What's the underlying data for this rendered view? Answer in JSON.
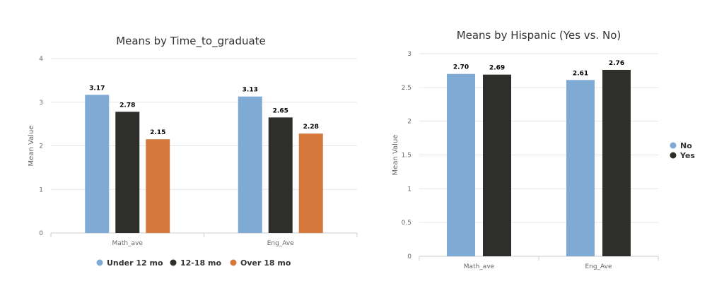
{
  "chart_data": [
    {
      "type": "bar",
      "title": "Means by Time_to_graduate",
      "ylabel": "Mean Value",
      "xlabel": "",
      "categories": [
        "Math_ave",
        "Eng_Ave"
      ],
      "ylim": [
        0,
        4
      ],
      "yticks": [
        "0",
        "1",
        "2",
        "3",
        "4"
      ],
      "series": [
        {
          "name": "Under 12 mo",
          "color": "#7faad4",
          "values": [
            3.17,
            3.13
          ],
          "labels": [
            "3.17",
            "3.13"
          ]
        },
        {
          "name": "12-18 mo",
          "color": "#2e2e2a",
          "values": [
            2.78,
            2.65
          ],
          "labels": [
            "2.78",
            "2.65"
          ]
        },
        {
          "name": "Over 18 mo",
          "color": "#d4793b",
          "values": [
            2.15,
            2.28
          ],
          "labels": [
            "2.15",
            "2.28"
          ]
        }
      ],
      "legend_position": "bottom",
      "grid": true
    },
    {
      "type": "bar",
      "title": "Means by Hispanic (Yes vs. No)",
      "ylabel": "Mean Value",
      "xlabel": "",
      "categories": [
        "Math_ave",
        "Eng_Ave"
      ],
      "ylim": [
        0,
        3
      ],
      "yticks": [
        "0",
        "0.5",
        "1",
        "1.5",
        "2",
        "2.5",
        "3"
      ],
      "series": [
        {
          "name": "No",
          "color": "#7faad4",
          "values": [
            2.7,
            2.61
          ],
          "labels": [
            "2.70",
            "2.61"
          ]
        },
        {
          "name": "Yes",
          "color": "#2e2e2a",
          "values": [
            2.69,
            2.76
          ],
          "labels": [
            "2.69",
            "2.76"
          ]
        }
      ],
      "legend_position": "right",
      "grid": true
    }
  ]
}
